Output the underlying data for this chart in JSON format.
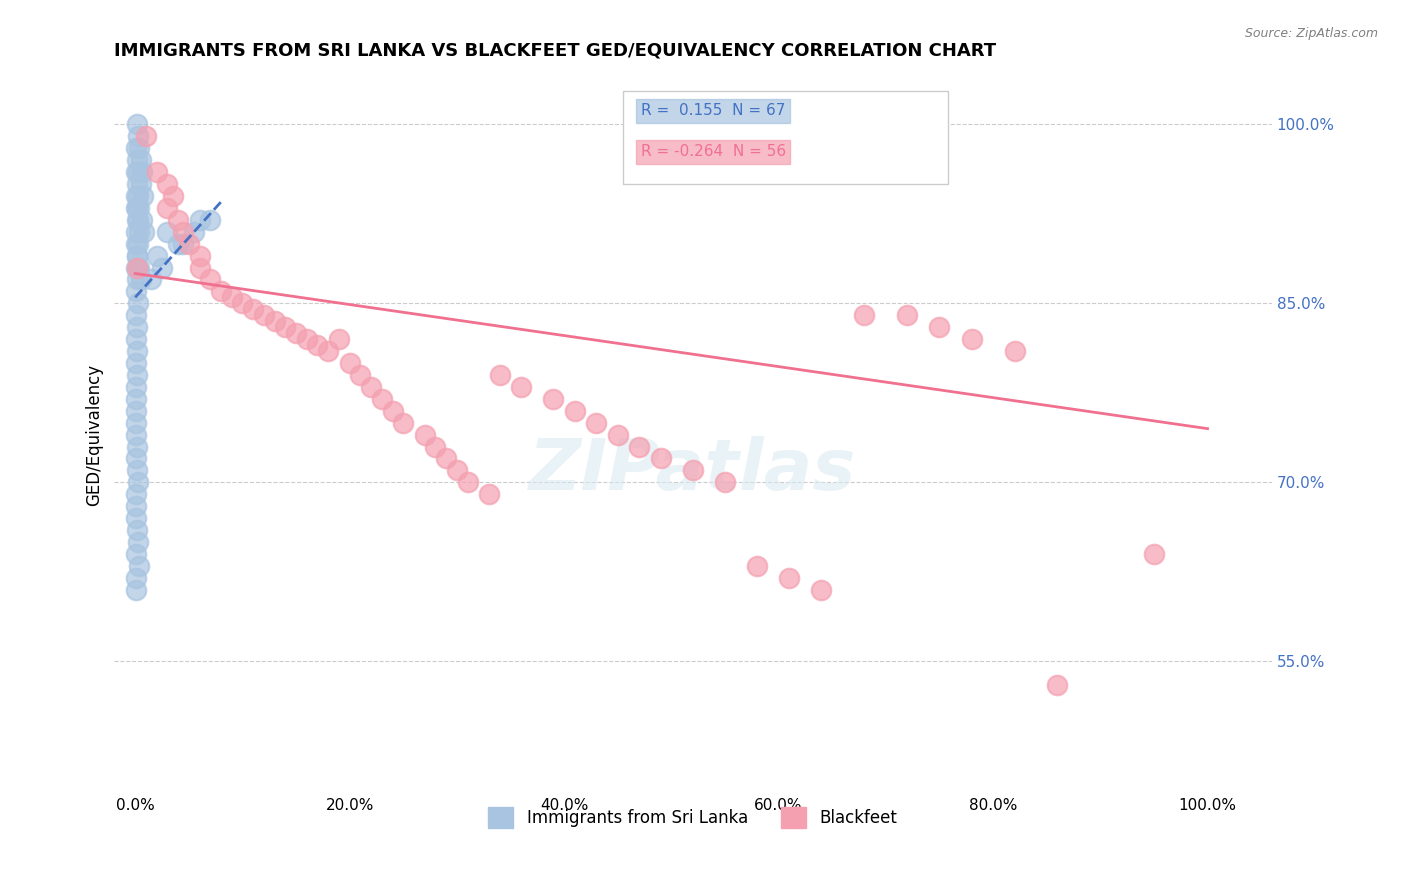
{
  "title": "IMMIGRANTS FROM SRI LANKA VS BLACKFEET GED/EQUIVALENCY CORRELATION CHART",
  "source_text": "Source: ZipAtlas.com",
  "xlabel": "",
  "ylabel": "GED/Equivalency",
  "xticklabels": [
    "0.0%",
    "20.0%",
    "40.0%",
    "60.0%",
    "80.0%",
    "100.0%"
  ],
  "xticks": [
    0.0,
    0.2,
    0.4,
    0.6,
    0.8,
    1.0
  ],
  "yticklabels": [
    "55.0%",
    "70.0%",
    "85.0%",
    "100.0%"
  ],
  "yticks": [
    0.55,
    0.7,
    0.85,
    1.0
  ],
  "ylim": [
    0.44,
    1.04
  ],
  "xlim": [
    -0.02,
    1.06
  ],
  "legend_R1": "0.155",
  "legend_N1": "67",
  "legend_R2": "-0.264",
  "legend_N2": "56",
  "legend_label1": "Immigrants from Sri Lanka",
  "legend_label2": "Blackfeet",
  "watermark": "ZIPatlas",
  "blue_color": "#a8c4e0",
  "pink_color": "#f4a0b0",
  "blue_line_color": "#4472c4",
  "pink_line_color": "#f07090",
  "title_fontsize": 13,
  "blue_scatter_x": [
    0.002,
    0.003,
    0.004,
    0.005,
    0.006,
    0.001,
    0.002,
    0.003,
    0.005,
    0.007,
    0.001,
    0.002,
    0.003,
    0.004,
    0.006,
    0.008,
    0.001,
    0.002,
    0.003,
    0.004,
    0.001,
    0.002,
    0.001,
    0.003,
    0.002,
    0.004,
    0.005,
    0.001,
    0.002,
    0.003,
    0.001,
    0.002,
    0.001,
    0.003,
    0.001,
    0.002,
    0.001,
    0.002,
    0.001,
    0.002,
    0.001,
    0.001,
    0.001,
    0.001,
    0.001,
    0.002,
    0.001,
    0.002,
    0.003,
    0.001,
    0.001,
    0.001,
    0.002,
    0.003,
    0.001,
    0.004,
    0.025,
    0.04,
    0.055,
    0.07,
    0.015,
    0.02,
    0.03,
    0.045,
    0.06,
    0.001,
    0.001
  ],
  "blue_scatter_y": [
    1.0,
    0.99,
    0.98,
    0.97,
    0.96,
    0.98,
    0.97,
    0.96,
    0.95,
    0.94,
    0.96,
    0.95,
    0.94,
    0.93,
    0.92,
    0.91,
    0.94,
    0.93,
    0.92,
    0.91,
    0.93,
    0.92,
    0.91,
    0.9,
    0.89,
    0.88,
    0.87,
    0.9,
    0.89,
    0.88,
    0.88,
    0.87,
    0.86,
    0.85,
    0.84,
    0.83,
    0.82,
    0.81,
    0.8,
    0.79,
    0.78,
    0.77,
    0.76,
    0.75,
    0.74,
    0.73,
    0.72,
    0.71,
    0.7,
    0.69,
    0.68,
    0.67,
    0.66,
    0.65,
    0.64,
    0.63,
    0.88,
    0.9,
    0.91,
    0.92,
    0.87,
    0.89,
    0.91,
    0.9,
    0.92,
    0.62,
    0.61
  ],
  "pink_scatter_x": [
    0.002,
    0.01,
    0.02,
    0.03,
    0.035,
    0.03,
    0.04,
    0.045,
    0.05,
    0.06,
    0.06,
    0.07,
    0.08,
    0.09,
    0.1,
    0.11,
    0.12,
    0.13,
    0.14,
    0.15,
    0.16,
    0.17,
    0.18,
    0.19,
    0.2,
    0.21,
    0.22,
    0.23,
    0.24,
    0.25,
    0.27,
    0.28,
    0.29,
    0.3,
    0.31,
    0.33,
    0.34,
    0.36,
    0.39,
    0.41,
    0.43,
    0.45,
    0.47,
    0.49,
    0.52,
    0.55,
    0.58,
    0.61,
    0.64,
    0.68,
    0.72,
    0.75,
    0.78,
    0.82,
    0.86,
    0.95
  ],
  "pink_scatter_y": [
    0.88,
    0.99,
    0.96,
    0.95,
    0.94,
    0.93,
    0.92,
    0.91,
    0.9,
    0.89,
    0.88,
    0.87,
    0.86,
    0.855,
    0.85,
    0.845,
    0.84,
    0.835,
    0.83,
    0.825,
    0.82,
    0.815,
    0.81,
    0.82,
    0.8,
    0.79,
    0.78,
    0.77,
    0.76,
    0.75,
    0.74,
    0.73,
    0.72,
    0.71,
    0.7,
    0.69,
    0.79,
    0.78,
    0.77,
    0.76,
    0.75,
    0.74,
    0.73,
    0.72,
    0.71,
    0.7,
    0.63,
    0.62,
    0.61,
    0.84,
    0.84,
    0.83,
    0.82,
    0.81,
    0.53,
    0.64
  ],
  "blue_trend_x": [
    0.0,
    0.08
  ],
  "blue_trend_y": [
    0.855,
    0.935
  ],
  "pink_trend_x": [
    0.0,
    1.0
  ],
  "pink_trend_y": [
    0.875,
    0.745
  ],
  "grid_color": "#cccccc",
  "right_tick_color": "#4472c4"
}
